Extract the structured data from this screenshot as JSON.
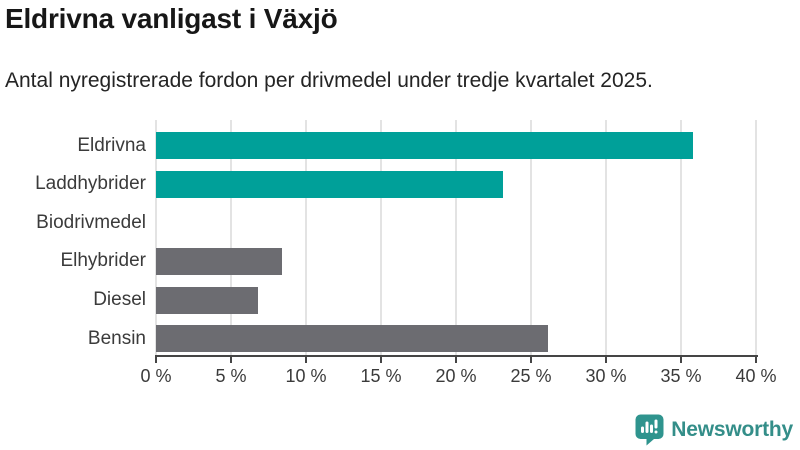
{
  "chart_data": {
    "type": "bar",
    "orientation": "horizontal",
    "title": "Eldrivna vanligast i Växjö",
    "subtitle": "Antal nyregistrerade fordon per drivmedel under tredje kvartalet 2025.",
    "categories": [
      "Eldrivna",
      "Laddhybrider",
      "Biodrivmedel",
      "Elhybrider",
      "Diesel",
      "Bensin"
    ],
    "values": [
      35.8,
      23.1,
      0,
      8.4,
      6.8,
      26.1
    ],
    "unit": "%",
    "bar_colors": [
      "#00A099",
      "#00A099",
      "#6C6C71",
      "#6C6C71",
      "#6C6C71",
      "#6C6C71"
    ],
    "xlim": [
      0,
      40
    ],
    "x_ticks": [
      {
        "value": 0,
        "label": "0 %"
      },
      {
        "value": 5,
        "label": "5 %"
      },
      {
        "value": 10,
        "label": "10 %"
      },
      {
        "value": 15,
        "label": "15 %"
      },
      {
        "value": 20,
        "label": "20 %"
      },
      {
        "value": 25,
        "label": "25 %"
      },
      {
        "value": 30,
        "label": "30 %"
      },
      {
        "value": 35,
        "label": "35 %"
      },
      {
        "value": 40,
        "label": "40 %"
      }
    ],
    "grid": "vertical",
    "legend": "none"
  },
  "branding": {
    "logo_text": "Newsworthy"
  },
  "colors": {
    "accent_teal": "#00A099",
    "bar_gray": "#6C6C71",
    "grid_gray": "#E3E3E3",
    "axis_dark": "#454545",
    "logo_teal": "#2F948E",
    "logo_text_teal": "#348E89"
  }
}
